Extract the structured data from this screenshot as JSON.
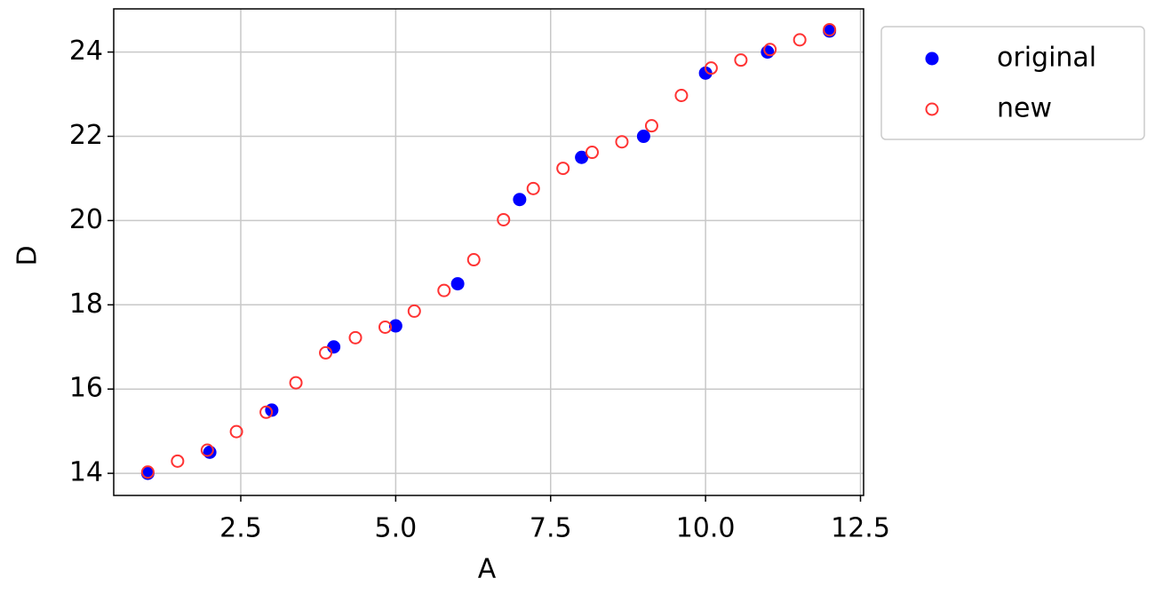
{
  "chart_data": {
    "type": "scatter",
    "x_label": "A",
    "y_label": "D",
    "xlim": [
      0.45,
      12.55
    ],
    "ylim": [
      13.475,
      25.025
    ],
    "xticks": [
      2.5,
      {
        "value": 5,
        "label": "5.0"
      },
      7.5,
      {
        "value": 10,
        "label": "10.0"
      },
      12.5
    ],
    "yticks": [
      14,
      16,
      18,
      20,
      22,
      24
    ],
    "grid": true,
    "legend": "outside-upper-right",
    "series": [
      {
        "name": "original",
        "color": "#0000ff",
        "filled": true,
        "x": [
          1,
          2,
          3,
          4,
          5,
          6,
          7,
          8,
          9,
          10,
          11,
          12
        ],
        "values": [
          14,
          14.5,
          15.5,
          17,
          17.5,
          18.5,
          20.5,
          21.5,
          22,
          23.5,
          24,
          24.5
        ]
      },
      {
        "name": "new",
        "color": "#ff3333",
        "filled": false,
        "x": [
          1,
          1.48,
          1.96,
          2.43,
          2.91,
          3.39,
          3.87,
          4.35,
          4.83,
          5.3,
          5.78,
          6.26,
          6.74,
          7.22,
          7.7,
          8.17,
          8.65,
          9.13,
          9.61,
          10.09,
          10.57,
          11.04,
          11.52,
          12
        ],
        "values": [
          14.03,
          14.29,
          14.55,
          14.99,
          15.45,
          16.15,
          16.86,
          17.22,
          17.47,
          17.85,
          18.34,
          19.07,
          20.02,
          20.76,
          21.24,
          21.62,
          21.87,
          22.25,
          22.97,
          23.62,
          23.81,
          24.06,
          24.29,
          24.53
        ]
      }
    ]
  }
}
